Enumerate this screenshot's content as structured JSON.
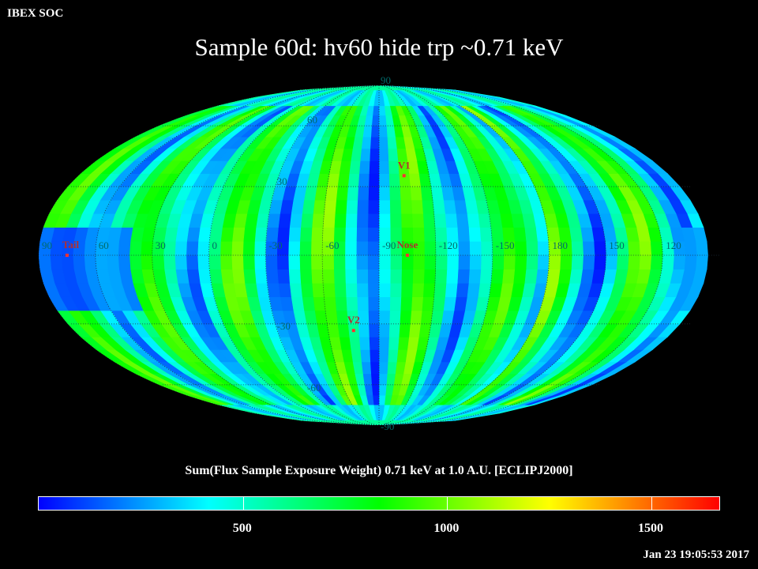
{
  "header": {
    "label": "IBEX SOC"
  },
  "title": "Sample 60d: hv60 hide trp ~0.71 keV",
  "timestamp": "Jan 23 19:05:53 2017",
  "projection": "Mollweide",
  "colorbar": {
    "title": "Sum(Flux Sample Exposure Weight)  0.71 keV at 1.0 A.U. [ECLIPJ2000]",
    "min": 0,
    "max": 1670,
    "ticks": [
      {
        "value": 500,
        "label": "500"
      },
      {
        "value": 1000,
        "label": "1000"
      },
      {
        "value": 1500,
        "label": "1500"
      }
    ],
    "colors": [
      "#0000ff",
      "#0080ff",
      "#00ffff",
      "#00ff80",
      "#00ff00",
      "#80ff00",
      "#ffff00",
      "#ff8000",
      "#ff0000"
    ]
  },
  "grid": {
    "longitude_labels": [
      "60",
      "30",
      "0",
      "-30",
      "-60",
      "-90",
      "-120",
      "-150",
      "180",
      "150",
      "120",
      "90"
    ],
    "latitude_labels": [
      "90",
      "60",
      "30",
      "-30",
      "-60",
      "-90"
    ],
    "center_longitude": -90
  },
  "markers": [
    {
      "name": "V1",
      "label": "V1",
      "lon": -105,
      "lat": 35,
      "color": "#ff3030"
    },
    {
      "name": "Nose",
      "label": "Nose",
      "lon": -105,
      "lat": 0,
      "color": "#ff3030"
    },
    {
      "name": "Tail",
      "label": "Tail",
      "lon": 75,
      "lat": 0,
      "color": "#ff3030"
    },
    {
      "name": "V2",
      "label": "V2",
      "lon": -75,
      "lat": -33,
      "color": "#ff3030"
    }
  ]
}
